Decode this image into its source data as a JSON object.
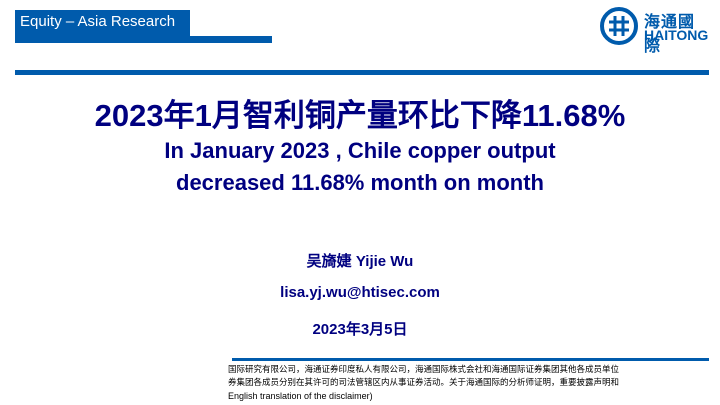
{
  "header": {
    "label": "Equity – Asia Research",
    "brand_color": "#005bac"
  },
  "logo": {
    "cn": "海通國際",
    "en": "HAITONG",
    "icon": "haitong-logo-icon"
  },
  "title": {
    "cn": "2023年1月智利铜产量环比下降11.68%",
    "en_line1": "In January 2023 , Chile copper output",
    "en_line2": "decreased 11.68% month on month",
    "color": "#000080"
  },
  "author": {
    "name": "吴旖婕 Yijie Wu",
    "email": "lisa.yj.wu@htisec.com",
    "date": "2023年3月5日"
  },
  "disclaimer": {
    "line1": "国际研究有限公司，海通证券印度私人有限公司，海通国际株式会社和海通国际证券集团其他各成员单位",
    "line2": "券集团各成员分别在其许可的司法管辖区内从事证券活动。关于海通国际的分析师证明，重要披露声明和",
    "line3": "English translation of the disclaimer)"
  }
}
